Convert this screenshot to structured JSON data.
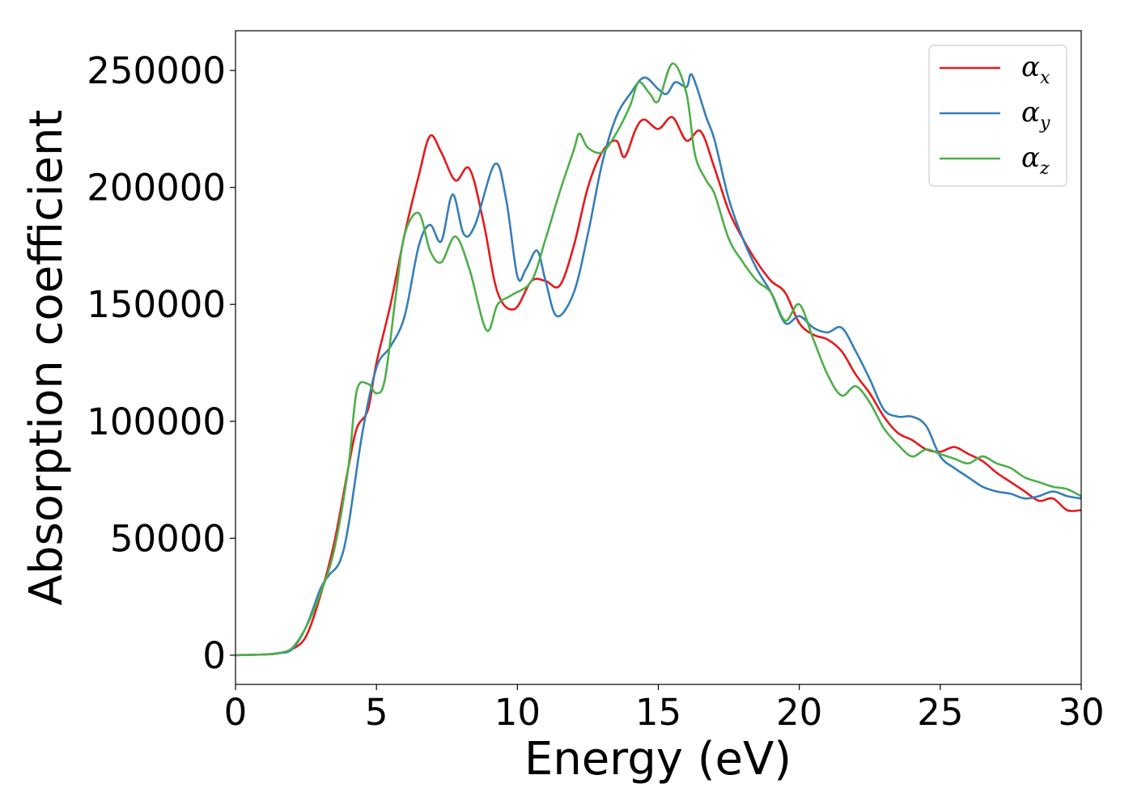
{
  "chart_data": {
    "type": "line",
    "title": "",
    "xlabel": "Energy (eV)",
    "ylabel": "Absorption coefficient",
    "xlim": [
      0,
      30
    ],
    "ylim": [
      -12500,
      267000
    ],
    "xticks": [
      0,
      5,
      10,
      15,
      20,
      25,
      30
    ],
    "xtick_labels": [
      "0",
      "5",
      "10",
      "15",
      "20",
      "25",
      "30"
    ],
    "yticks": [
      0,
      50000,
      100000,
      150000,
      200000,
      250000
    ],
    "ytick_labels": [
      "0",
      "50000",
      "100000",
      "150000",
      "200000",
      "250000"
    ],
    "grid": false,
    "legend_position": "top-right",
    "series": [
      {
        "name": "α",
        "subscript": "x",
        "color": "#e41a1c",
        "x": [
          0,
          1,
          1.5,
          2,
          2.5,
          3,
          3.5,
          4,
          4.3,
          4.7,
          5,
          5.5,
          6,
          6.5,
          6.9,
          7.3,
          7.8,
          8.3,
          8.8,
          9.3,
          9.9,
          10.5,
          11,
          11.5,
          12,
          12.5,
          13,
          13.5,
          13.8,
          14.2,
          14.5,
          15,
          15.5,
          16,
          16.5,
          17,
          17.5,
          18,
          18.5,
          19,
          19.5,
          20,
          20.5,
          21,
          21.5,
          22,
          22.5,
          23,
          23.5,
          24,
          24.5,
          25,
          25.5,
          26,
          26.5,
          27,
          27.5,
          28,
          28.5,
          29,
          29.5,
          30
        ],
        "y": [
          0,
          300,
          800,
          2500,
          8000,
          25000,
          48000,
          80000,
          97000,
          105000,
          125000,
          150000,
          180000,
          205000,
          222000,
          215000,
          203000,
          208000,
          185000,
          155000,
          148000,
          160000,
          160000,
          158000,
          175000,
          200000,
          215000,
          220000,
          213000,
          225000,
          229000,
          225000,
          230000,
          220000,
          224000,
          208000,
          190000,
          178000,
          168000,
          160000,
          155000,
          142000,
          137000,
          135000,
          130000,
          120000,
          112000,
          102000,
          95000,
          92000,
          88000,
          87000,
          89000,
          86000,
          83000,
          78000,
          74000,
          70000,
          66000,
          67000,
          62000,
          62000
        ]
      },
      {
        "name": "α",
        "subscript": "y",
        "color": "#377eb8",
        "x": [
          0,
          1,
          1.5,
          2,
          2.5,
          3,
          3.3,
          3.7,
          4,
          4.5,
          5,
          5.5,
          6,
          6.5,
          6.9,
          7.3,
          7.7,
          8.1,
          8.5,
          9.2,
          9.6,
          10,
          10.3,
          10.7,
          11,
          11.4,
          12,
          12.5,
          13,
          13.5,
          14,
          14.5,
          15,
          15.3,
          15.6,
          16,
          16.2,
          16.7,
          17,
          17.5,
          18,
          18.5,
          19,
          19.5,
          20,
          20.5,
          21,
          21.5,
          22,
          22.5,
          23,
          23.5,
          24,
          24.5,
          25,
          25.5,
          26,
          26.5,
          27,
          27.5,
          28,
          28.5,
          29,
          29.5,
          30
        ],
        "y": [
          0,
          300,
          800,
          2500,
          12000,
          28000,
          34000,
          40000,
          55000,
          95000,
          123000,
          132000,
          145000,
          175000,
          184000,
          177000,
          197000,
          180000,
          184000,
          210000,
          195000,
          162000,
          165000,
          173000,
          160000,
          145000,
          155000,
          180000,
          210000,
          230000,
          240000,
          247000,
          242000,
          240000,
          245000,
          243000,
          248000,
          230000,
          220000,
          195000,
          178000,
          165000,
          155000,
          142000,
          145000,
          140000,
          138000,
          140000,
          130000,
          118000,
          105000,
          102000,
          102000,
          98000,
          85000,
          80000,
          76000,
          72000,
          70000,
          69000,
          67000,
          68000,
          70000,
          68000,
          67000
        ]
      },
      {
        "name": "α",
        "subscript": "z",
        "color": "#4daf4a",
        "x": [
          0,
          1,
          1.5,
          2,
          2.5,
          3,
          3.5,
          4,
          4.3,
          4.7,
          5,
          5.3,
          5.7,
          6,
          6.5,
          6.9,
          7.3,
          7.8,
          8.3,
          8.9,
          9.3,
          9.8,
          10.5,
          11,
          11.5,
          12,
          12.2,
          12.5,
          13,
          13.5,
          14,
          14.3,
          14.7,
          15,
          15.5,
          16,
          16.3,
          16.7,
          17,
          17.5,
          18,
          18.5,
          19,
          19.5,
          20,
          20.5,
          21,
          21.5,
          22,
          22.5,
          23,
          23.5,
          24,
          24.5,
          25,
          25.5,
          26,
          26.5,
          27,
          27.5,
          28,
          28.5,
          29,
          29.5,
          30
        ],
        "y": [
          0,
          300,
          800,
          3000,
          12000,
          26000,
          45000,
          80000,
          113000,
          116000,
          112000,
          118000,
          155000,
          180000,
          189000,
          173000,
          168000,
          179000,
          165000,
          139000,
          150000,
          154000,
          160000,
          178000,
          198000,
          216000,
          223000,
          217000,
          215000,
          223000,
          235000,
          245000,
          240000,
          237000,
          253000,
          240000,
          214000,
          203000,
          197000,
          178000,
          168000,
          160000,
          155000,
          143000,
          150000,
          135000,
          120000,
          111000,
          115000,
          108000,
          97000,
          90000,
          85000,
          88000,
          86000,
          84000,
          82000,
          85000,
          82000,
          80000,
          76000,
          74000,
          72000,
          71000,
          68000
        ]
      }
    ]
  }
}
